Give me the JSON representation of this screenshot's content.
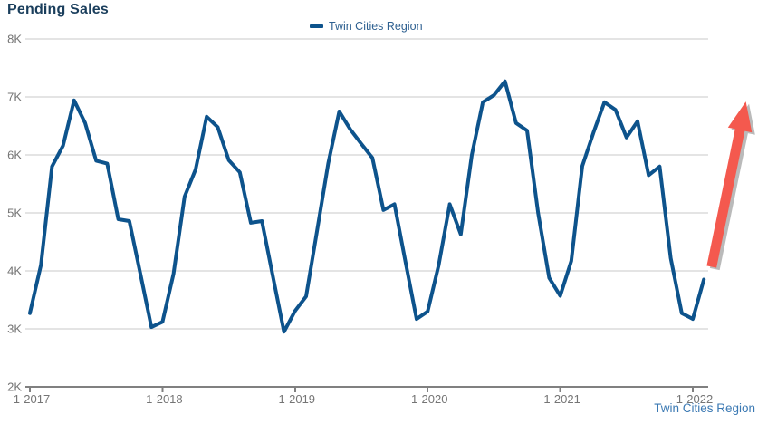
{
  "title": "Pending Sales",
  "legend": {
    "label": "Twin Cities Region"
  },
  "footer_label": "Twin Cities Region",
  "chart_data": {
    "type": "line",
    "title": "Pending Sales",
    "xlabel": "",
    "ylabel": "",
    "y_unit": "K (thousands of pending sales)",
    "y_range": [
      2,
      8
    ],
    "grid": true,
    "legend_position": "top-center",
    "x_tick_labels": [
      "1-2017",
      "1-2018",
      "1-2019",
      "1-2020",
      "1-2021",
      "1-2022"
    ],
    "x_tick_month_indices": [
      0,
      12,
      24,
      36,
      48,
      60
    ],
    "y_tick_labels": [
      "2K",
      "3K",
      "4K",
      "5K",
      "6K",
      "7K",
      "8K"
    ],
    "categories": [
      "2017-01",
      "2017-02",
      "2017-03",
      "2017-04",
      "2017-05",
      "2017-06",
      "2017-07",
      "2017-08",
      "2017-09",
      "2017-10",
      "2017-11",
      "2017-12",
      "2018-01",
      "2018-02",
      "2018-03",
      "2018-04",
      "2018-05",
      "2018-06",
      "2018-07",
      "2018-08",
      "2018-09",
      "2018-10",
      "2018-11",
      "2018-12",
      "2019-01",
      "2019-02",
      "2019-03",
      "2019-04",
      "2019-05",
      "2019-06",
      "2019-07",
      "2019-08",
      "2019-09",
      "2019-10",
      "2019-11",
      "2019-12",
      "2020-01",
      "2020-02",
      "2020-03",
      "2020-04",
      "2020-05",
      "2020-06",
      "2020-07",
      "2020-08",
      "2020-09",
      "2020-10",
      "2020-11",
      "2020-12",
      "2021-01",
      "2021-02",
      "2021-03",
      "2021-04",
      "2021-05",
      "2021-06",
      "2021-07",
      "2021-08",
      "2021-09",
      "2021-10",
      "2021-11",
      "2021-12",
      "2022-01",
      "2022-02"
    ],
    "series": [
      {
        "name": "Twin Cities Region",
        "values": [
          3.27,
          4.1,
          5.8,
          6.16,
          6.94,
          6.55,
          5.9,
          5.85,
          4.89,
          4.86,
          3.95,
          3.03,
          3.12,
          3.95,
          5.28,
          5.75,
          6.66,
          6.48,
          5.91,
          5.7,
          4.83,
          4.86,
          3.9,
          2.95,
          3.31,
          3.56,
          4.7,
          5.85,
          6.75,
          6.44,
          6.19,
          5.95,
          5.05,
          5.15,
          4.15,
          3.17,
          3.3,
          4.1,
          5.15,
          4.63,
          6.0,
          6.91,
          7.03,
          7.27,
          6.55,
          6.42,
          5.0,
          3.88,
          3.57,
          4.17,
          5.81,
          6.38,
          6.91,
          6.78,
          6.3,
          6.58,
          5.65,
          5.8,
          4.22,
          3.27,
          3.17,
          3.85
        ]
      }
    ],
    "annotation_arrow": {
      "description": "thick upward-pointing red arrow after the last data point",
      "from": [
        61.7,
        4.07
      ],
      "to": [
        64.8,
        6.92
      ]
    },
    "colors": {
      "line": "#0d538c",
      "grid": "#cacaca",
      "axis": "#808080",
      "tick_text": "#757575",
      "title_text": "#1a3e5c",
      "legend_text": "#2f6191",
      "footer_text": "#3b79b3",
      "arrow": "#f4594e",
      "arrow_shadow": "#4a4a4a",
      "background": "#ffffff"
    }
  }
}
